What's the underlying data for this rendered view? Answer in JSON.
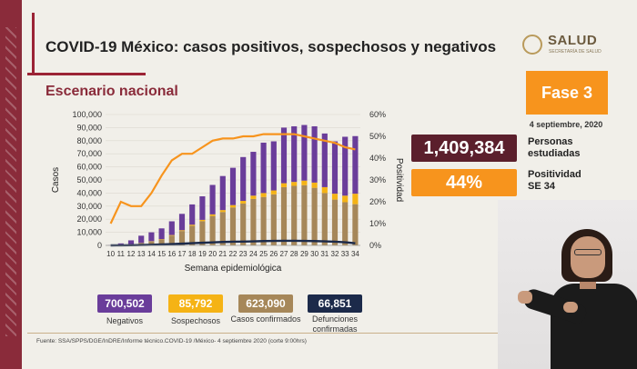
{
  "header": {
    "title": "COVID-19 México: casos positivos, sospechosos y negativos",
    "subtitle": "Escenario nacional",
    "logo_text": "SALUD",
    "logo_subtext": "SECRETARÍA DE SALUD"
  },
  "phase": {
    "label": "Fase 3",
    "date": "4 septiembre, 2020"
  },
  "stats": [
    {
      "value": "1,409,384",
      "label": "Personas estudiadas",
      "color": "#5b1f2c"
    },
    {
      "value": "44%",
      "label": "Positividad SE 34",
      "color": "#f7941d"
    }
  ],
  "legend": [
    {
      "value": "700,502",
      "label": "Negativos",
      "color": "#6a3d9a"
    },
    {
      "value": "85,792",
      "label": "Sospechosos",
      "color": "#f5b315"
    },
    {
      "value": "623,090",
      "label": "Casos confirmados",
      "color": "#a68759"
    },
    {
      "value": "66,851",
      "label": "Defunciones confirmadas",
      "color": "#1c2a4a"
    }
  ],
  "source": "Fuente: SSA/SPPS/DGE/InDRE/Informe técnico.COVID-19 /México- 4 septiembre 2020 (corte 9:00hrs)",
  "chart_data": {
    "type": "bar",
    "stacked": true,
    "xlabel": "Semana epidemiológica",
    "ylabel": "Casos",
    "y2label": "Positividad",
    "ylim": [
      0,
      100000
    ],
    "y2lim": [
      0,
      60
    ],
    "yticks": [
      "0",
      "10,000",
      "20,000",
      "30,000",
      "40,000",
      "50,000",
      "60,000",
      "70,000",
      "80,000",
      "90,000",
      "100,000"
    ],
    "y2ticks": [
      "0%",
      "10%",
      "20%",
      "30%",
      "40%",
      "50%",
      "60%"
    ],
    "categories": [
      "10",
      "11",
      "12",
      "13",
      "14",
      "15",
      "16",
      "17",
      "18",
      "19",
      "20",
      "21",
      "22",
      "23",
      "24",
      "25",
      "26",
      "27",
      "28",
      "29",
      "30",
      "31",
      "32",
      "33",
      "34"
    ],
    "series": [
      {
        "name": "Casos confirmados",
        "color": "#a68759",
        "values": [
          50,
          300,
          800,
          1800,
          3000,
          4500,
          7500,
          11000,
          15000,
          18500,
          22500,
          25500,
          29000,
          32000,
          35500,
          37000,
          39000,
          44500,
          45500,
          46000,
          44000,
          40000,
          35000,
          33000,
          31500
        ]
      },
      {
        "name": "Sospechosos",
        "color": "#f5b315",
        "values": [
          0,
          0,
          50,
          100,
          200,
          300,
          400,
          600,
          800,
          1000,
          1200,
          1500,
          1800,
          2000,
          2500,
          3000,
          3000,
          3000,
          3000,
          3500,
          4000,
          4500,
          4500,
          5000,
          8000
        ]
      },
      {
        "name": "Negativos",
        "color": "#6a3d9a",
        "values": [
          200,
          1200,
          3000,
          5500,
          6800,
          8200,
          10500,
          12500,
          15500,
          18000,
          22500,
          26000,
          28500,
          33500,
          33500,
          38500,
          37500,
          42500,
          42500,
          42500,
          43000,
          41000,
          40000,
          45000,
          44000
        ]
      },
      {
        "name": "Defunciones confirmadas",
        "type": "line",
        "color": "#1c2a4a",
        "values": [
          0,
          50,
          150,
          300,
          500,
          700,
          1000,
          1300,
          1700,
          2000,
          2300,
          2600,
          2800,
          2900,
          3100,
          3300,
          3400,
          3500,
          3500,
          3400,
          3300,
          3100,
          2800,
          2400,
          1600
        ]
      },
      {
        "name": "Positividad",
        "type": "line",
        "axis": "y2",
        "color": "#f7941d",
        "values": [
          10,
          20,
          18,
          18,
          24,
          32,
          39,
          42,
          42,
          45,
          48,
          49,
          49,
          50,
          50,
          51,
          51,
          51,
          51,
          50,
          49,
          48,
          47,
          45,
          44
        ]
      }
    ]
  }
}
